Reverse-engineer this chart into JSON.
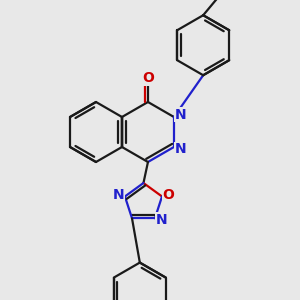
{
  "background_color": "#e8e8e8",
  "bond_color": "#1a1a1a",
  "nitrogen_color": "#2020cc",
  "oxygen_color": "#cc0000",
  "bond_width": 1.6,
  "figsize": [
    3.0,
    3.0
  ],
  "dpi": 100,
  "xlim": [
    0,
    10
  ],
  "ylim": [
    0,
    10
  ]
}
